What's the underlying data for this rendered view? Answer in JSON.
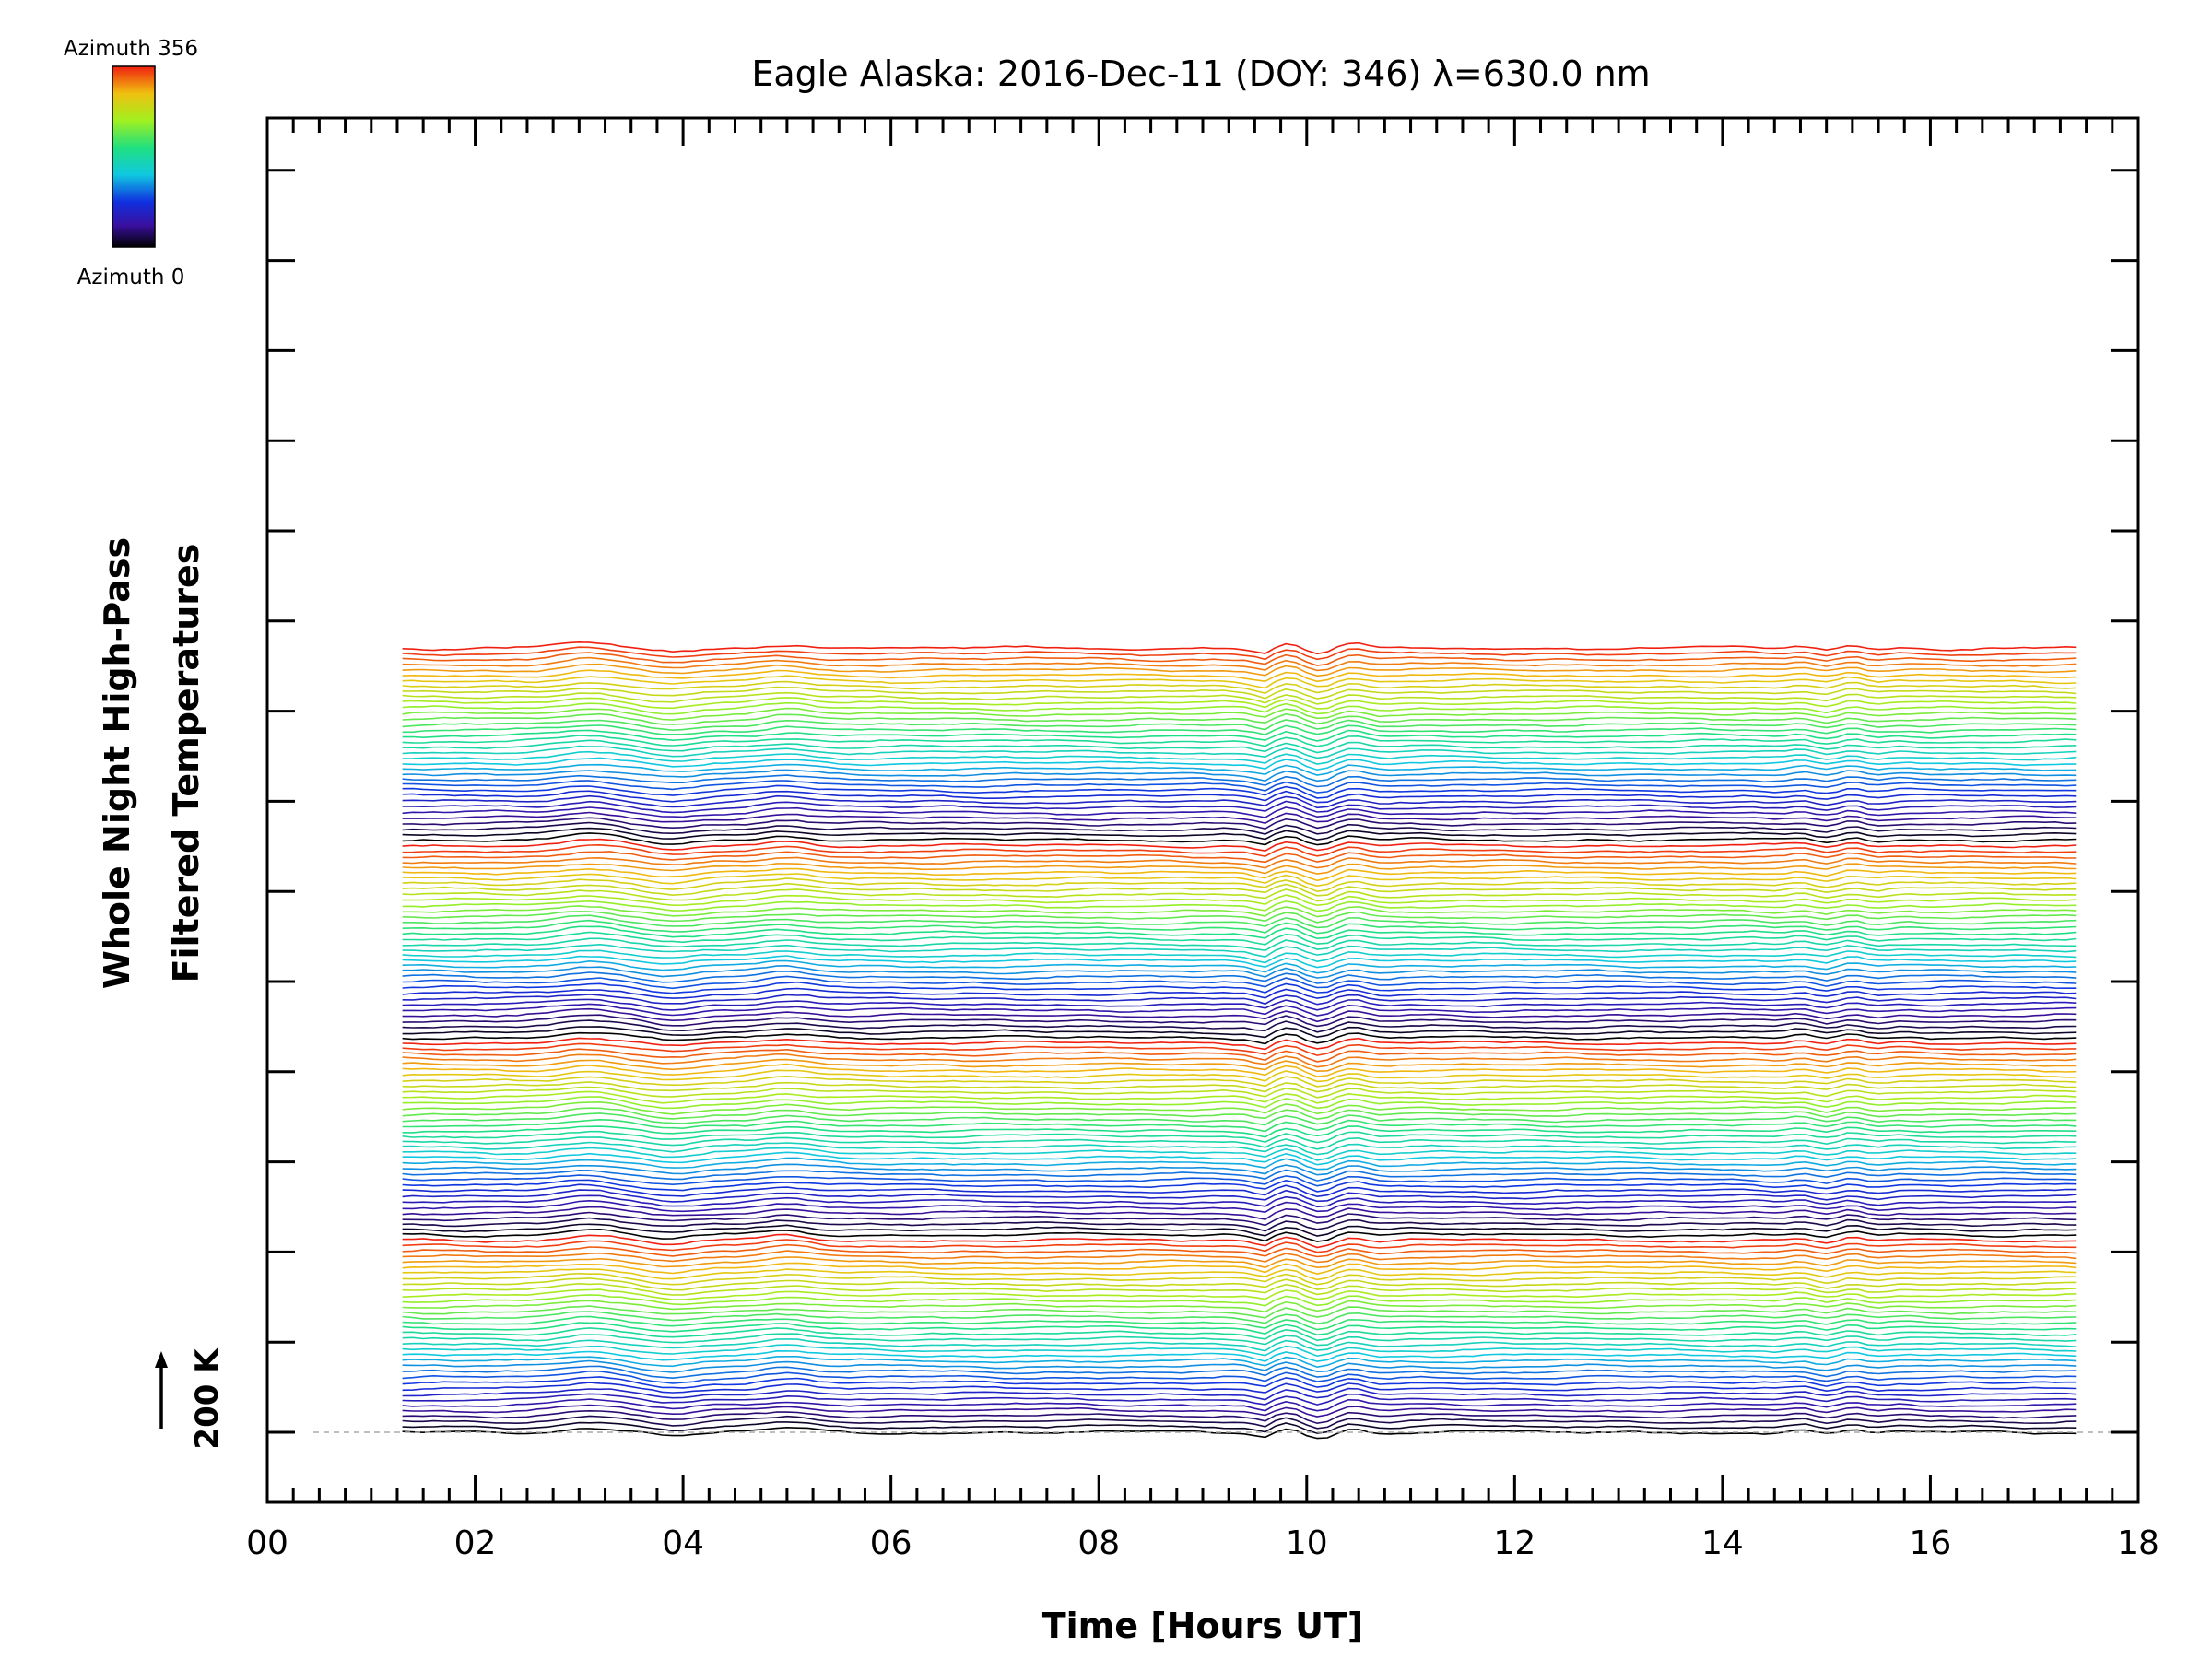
{
  "chart_data": {
    "type": "line",
    "title": "Eagle Alaska: 2016-Dec-11 (DOY: 346) λ=630.0 nm",
    "xlabel": "Time [Hours UT]",
    "ylabel": [
      "Whole Night High-Pass",
      "Filtered Temperatures"
    ],
    "xlim": [
      0,
      18
    ],
    "xticks": [
      "00",
      "02",
      "04",
      "06",
      "08",
      "10",
      "12",
      "14",
      "16",
      "18"
    ],
    "x_range_data": [
      1.3,
      17.4
    ],
    "scale_bar": {
      "label": "200 K",
      "value_k": 200
    },
    "colorbar": {
      "top_label": "Azimuth 356",
      "bottom_label": "Azimuth 0",
      "colormap": "rainbow"
    },
    "series_count": 144,
    "grid": false,
    "legend": "colorbar top-left",
    "colors": {
      "low": "#000000",
      "mid_blue": "#2020c8",
      "cyan": "#20d0d0",
      "green": "#60e040",
      "yellow": "#e0e020",
      "red": "#f03010"
    }
  }
}
